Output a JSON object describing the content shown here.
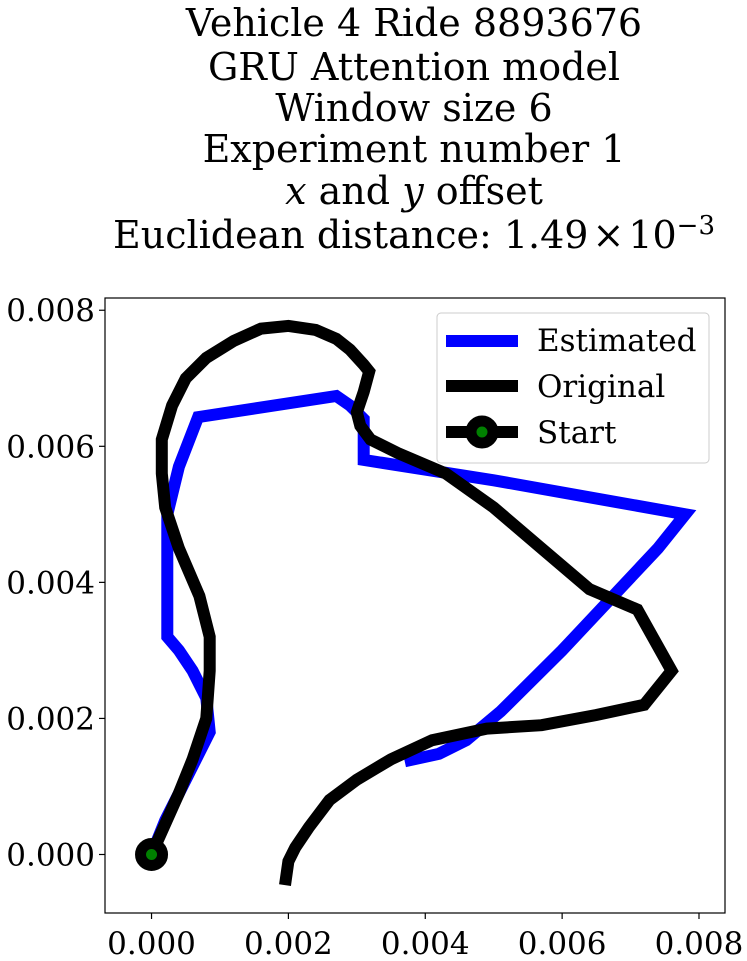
{
  "chart_data": {
    "type": "line",
    "title_lines": [
      "Vehicle 4 Ride 8893676",
      "GRU Attention model",
      "Window size 6",
      "Experiment number 1"
    ],
    "title_offset_line": {
      "x_var": "x",
      "and": " and ",
      "y_var": "y",
      "suffix": " offset"
    },
    "title_distance_line": {
      "prefix": "Euclidean distance: ",
      "mantissa": "1.49",
      "times": "×",
      "base": "10",
      "exponent": "−3"
    },
    "xlim": [
      -0.00068,
      0.00838
    ],
    "ylim": [
      -0.00086,
      0.00818
    ],
    "xticks": [
      0.0,
      0.002,
      0.004,
      0.006,
      0.008
    ],
    "xtick_labels": [
      "0.000",
      "0.002",
      "0.004",
      "0.006",
      "0.008"
    ],
    "yticks": [
      0.0,
      0.002,
      0.004,
      0.006,
      0.008
    ],
    "ytick_labels": [
      "0.000",
      "0.002",
      "0.004",
      "0.006",
      "0.008"
    ],
    "legend_position": "upper right",
    "series": [
      {
        "name": "Estimated",
        "color": "#0000ff",
        "points": [
          [
            0.0,
            0.0
          ],
          [
            0.0002,
            0.0005
          ],
          [
            0.0005,
            0.0011
          ],
          [
            0.00085,
            0.0018
          ],
          [
            0.0008,
            0.0023
          ],
          [
            0.0006,
            0.0027
          ],
          [
            0.0004,
            0.003
          ],
          [
            0.00023,
            0.0032
          ],
          [
            0.00023,
            0.0045
          ],
          [
            0.00023,
            0.005
          ],
          [
            0.0004,
            0.0057
          ],
          [
            0.00068,
            0.00643
          ],
          [
            0.0027,
            0.00674
          ],
          [
            0.0029,
            0.0066
          ],
          [
            0.0031,
            0.0064
          ],
          [
            0.0031,
            0.0058
          ],
          [
            0.005,
            0.0055
          ],
          [
            0.0078,
            0.005
          ],
          [
            0.0074,
            0.0045
          ],
          [
            0.006,
            0.003
          ],
          [
            0.0051,
            0.0021
          ],
          [
            0.0046,
            0.00168
          ],
          [
            0.0042,
            0.00148
          ],
          [
            0.0037,
            0.00137
          ]
        ]
      },
      {
        "name": "Original",
        "color": "#000000",
        "points": [
          [
            0.0,
            0.0
          ],
          [
            0.0004,
            0.0009
          ],
          [
            0.0006,
            0.0014
          ],
          [
            0.0008,
            0.002
          ],
          [
            0.00085,
            0.0027
          ],
          [
            0.00085,
            0.0032
          ],
          [
            0.0007,
            0.0038
          ],
          [
            0.0004,
            0.0045
          ],
          [
            0.0002,
            0.0051
          ],
          [
            0.00015,
            0.0056
          ],
          [
            0.00015,
            0.0061
          ],
          [
            0.0003,
            0.0066
          ],
          [
            0.0005,
            0.007
          ],
          [
            0.0008,
            0.0073
          ],
          [
            0.0012,
            0.00755
          ],
          [
            0.0016,
            0.00773
          ],
          [
            0.002,
            0.00777
          ],
          [
            0.0024,
            0.00771
          ],
          [
            0.0027,
            0.00758
          ],
          [
            0.0029,
            0.00742
          ],
          [
            0.0031,
            0.0072
          ],
          [
            0.00318,
            0.0071
          ],
          [
            0.0031,
            0.0068
          ],
          [
            0.003,
            0.0065
          ],
          [
            0.00305,
            0.0063
          ],
          [
            0.0032,
            0.0061
          ],
          [
            0.0036,
            0.0059
          ],
          [
            0.0043,
            0.0056
          ],
          [
            0.005,
            0.0051
          ],
          [
            0.0057,
            0.0045
          ],
          [
            0.0064,
            0.0039
          ],
          [
            0.0071,
            0.0036
          ],
          [
            0.0076,
            0.0027
          ],
          [
            0.0072,
            0.0022
          ],
          [
            0.0065,
            0.00205
          ],
          [
            0.0057,
            0.0019
          ],
          [
            0.0049,
            0.00185
          ],
          [
            0.0041,
            0.00168
          ],
          [
            0.0035,
            0.0014
          ],
          [
            0.003,
            0.0011
          ],
          [
            0.0026,
            0.0008
          ],
          [
            0.0023,
            0.0004
          ],
          [
            0.0021,
            0.0001
          ],
          [
            0.002,
            -0.0001
          ],
          [
            0.00195,
            -0.00045
          ]
        ]
      }
    ],
    "start_marker": {
      "name": "Start",
      "point": [
        0.0,
        0.0
      ],
      "edge_color": "#000000",
      "face_color": "#008000"
    }
  }
}
